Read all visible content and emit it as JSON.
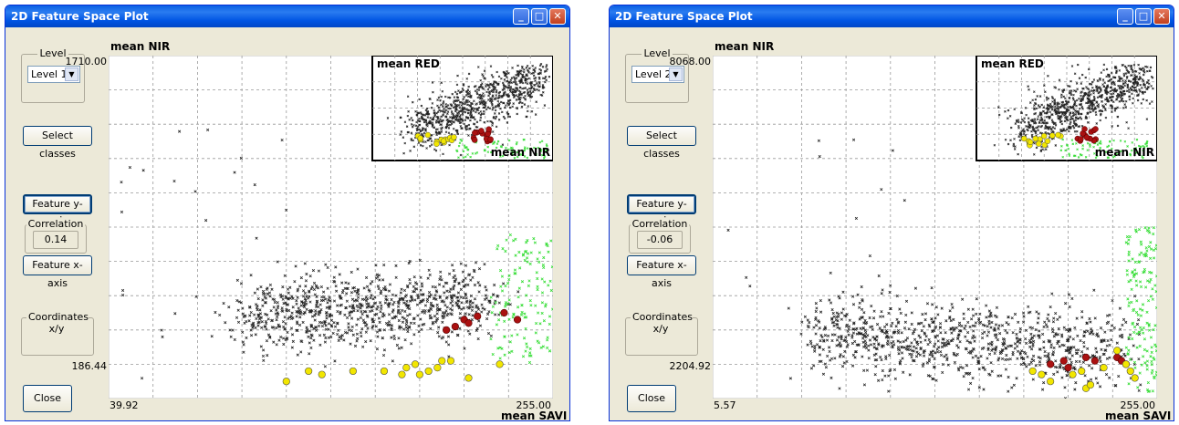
{
  "windows": [
    {
      "title": "2D Feature Space Plot",
      "level_group_label": "Level",
      "level_selected": "Level 1",
      "select_classes_label": "Select classes",
      "feature_y_label": "Feature y-axis",
      "correlation_label": "Correlation",
      "correlation_value": "0.14",
      "feature_x_label": "Feature x-axis",
      "coordinates_label": "Coordinates x/y",
      "close_label": "Close",
      "y_axis_label": "mean NIR",
      "x_axis_label": "mean SAVI",
      "y_max": "1710.00",
      "y_min": "186.44",
      "x_min": "39.92",
      "x_max": "255.00",
      "inset_y_label": "mean RED",
      "inset_x_label": "mean NIR",
      "chart_data": {
        "type": "scatter",
        "xlabel": "mean SAVI",
        "ylabel": "mean NIR",
        "xlim": [
          39.92,
          255.0
        ],
        "ylim": [
          186.44,
          1710.0
        ],
        "grid": true
      }
    },
    {
      "title": "2D Feature Space Plot",
      "level_group_label": "Level",
      "level_selected": "Level 2",
      "select_classes_label": "Select classes",
      "feature_y_label": "Feature y-axis",
      "correlation_label": "Correlation",
      "correlation_value": "-0.06",
      "feature_x_label": "Feature x-axis",
      "coordinates_label": "Coordinates x/y",
      "close_label": "Close",
      "y_axis_label": "mean NIR",
      "x_axis_label": "mean SAVI",
      "y_max": "8068.00",
      "y_min": "2204.92",
      "x_min": "5.57",
      "x_max": "255.00",
      "inset_y_label": "mean RED",
      "inset_x_label": "mean NIR",
      "chart_data": {
        "type": "scatter",
        "xlabel": "mean SAVI",
        "ylabel": "mean NIR",
        "xlim": [
          5.57,
          255.0
        ],
        "ylim": [
          2204.92,
          8068.0
        ],
        "grid": true
      }
    }
  ],
  "colors": {
    "unclassified_points": "#222222",
    "class_green": "#33dd33",
    "class_red": "#aa1111",
    "class_yellow": "#f2e600"
  }
}
